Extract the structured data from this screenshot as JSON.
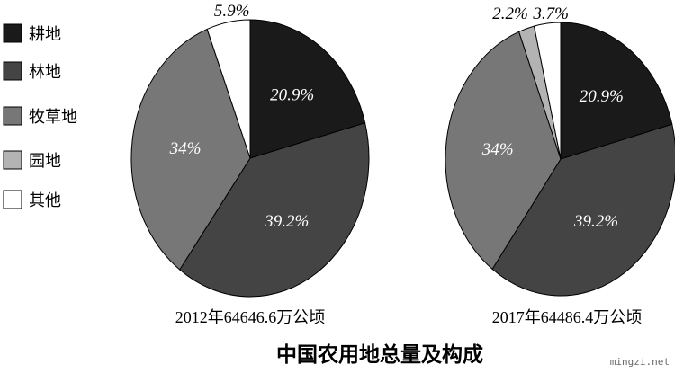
{
  "chart_data": [
    {
      "type": "pie",
      "caption": "2012年64646.6万公顷",
      "categories": [
        "耕地",
        "林地",
        "牧草地",
        "园地",
        "其他"
      ],
      "values": [
        20.9,
        39.2,
        34,
        0,
        5.9
      ],
      "labels": [
        "20.9%",
        "39.2%",
        "34%",
        "",
        "5.9%"
      ]
    },
    {
      "type": "pie",
      "caption": "2017年64486.4万公顷",
      "categories": [
        "耕地",
        "林地",
        "牧草地",
        "园地",
        "其他"
      ],
      "values": [
        20.9,
        39.2,
        34,
        2.2,
        3.7
      ],
      "labels": [
        "20.9%",
        "39.2%",
        "34%",
        "2.2%",
        "3.7%"
      ]
    }
  ],
  "legend": [
    {
      "label": "耕地",
      "color": "#1a1a1a"
    },
    {
      "label": "林地",
      "color": "#444444"
    },
    {
      "label": "牧草地",
      "color": "#777777"
    },
    {
      "label": "园地",
      "color": "#b3b3b3"
    },
    {
      "label": "其他",
      "color": "#ffffff"
    }
  ],
  "title": "中国农用地总量及构成",
  "watermark": "mingzi.net"
}
